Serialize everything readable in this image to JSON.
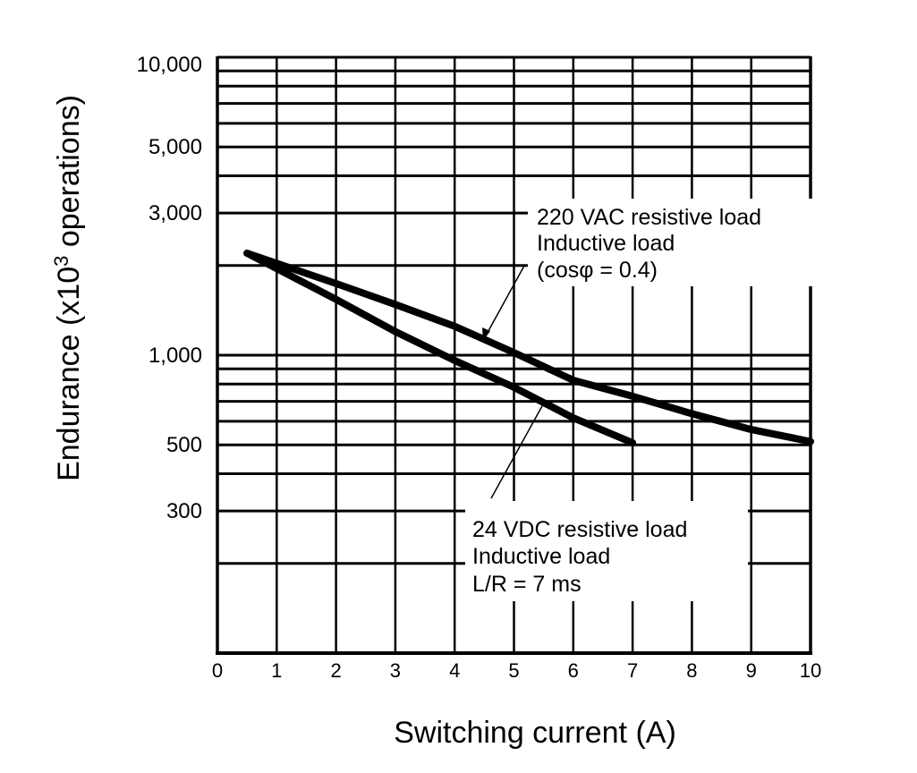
{
  "chart_data": {
    "type": "line",
    "xlabel": "Switching current (A)",
    "ylabel_main": "Endurance (x10",
    "ylabel_sup": "3",
    "ylabel_end": " operations)",
    "xlim": [
      0,
      10
    ],
    "ylim": [
      100,
      10000
    ],
    "y_scale": "log",
    "grid": true,
    "x_ticks": [
      "0",
      "1",
      "2",
      "3",
      "4",
      "5",
      "6",
      "7",
      "8",
      "9",
      "10"
    ],
    "y_ticks": [
      {
        "value": 10000,
        "label": "10,000"
      },
      {
        "value": 5000,
        "label": "5,000"
      },
      {
        "value": 3000,
        "label": "3,000"
      },
      {
        "value": 1000,
        "label": "1,000"
      },
      {
        "value": 500,
        "label": "500"
      },
      {
        "value": 300,
        "label": "300"
      }
    ],
    "series": [
      {
        "annotation": [
          "220 VAC resistive load",
          "Inductive load",
          "(cosφ = 0.4)"
        ],
        "x": [
          0.5,
          2,
          3,
          4,
          5,
          6,
          7,
          8,
          9,
          10
        ],
        "y": [
          2200,
          1740,
          1480,
          1250,
          1020,
          824,
          728,
          636,
          563,
          513
        ]
      },
      {
        "annotation": [
          "24 VDC resistive load",
          "Inductive load",
          "L/R = 7 ms"
        ],
        "x": [
          0.5,
          2,
          3,
          4,
          5,
          6,
          7
        ],
        "y": [
          2200,
          1540,
          1200,
          960,
          780,
          616,
          508
        ]
      }
    ],
    "color": "#000000"
  }
}
